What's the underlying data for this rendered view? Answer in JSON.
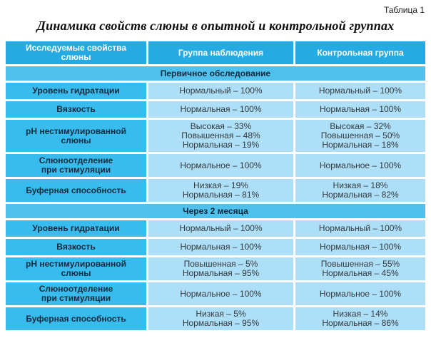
{
  "meta": {
    "table_label": "Таблица 1",
    "title": "Динамика свойств слюны в опытной и контрольной группах"
  },
  "table": {
    "columns": [
      [
        "Исследуемые свойства",
        "слюны"
      ],
      "Группа наблюдения",
      "Контрольная группа"
    ],
    "sections": [
      {
        "title": "Первичное обследование",
        "rows": [
          {
            "property": [
              "Уровень гидратации"
            ],
            "observation": [
              "Нормальный – 100%"
            ],
            "control": [
              "Нормальный – 100%"
            ]
          },
          {
            "property": [
              "Вязкость"
            ],
            "observation": [
              "Нормальная – 100%"
            ],
            "control": [
              "Нормальная – 100%"
            ]
          },
          {
            "property": [
              "pH нестимулированной",
              "слюны"
            ],
            "observation": [
              "Высокая – 33%",
              "Повышенная – 48%",
              "Нормальная – 19%"
            ],
            "control": [
              "Высокая – 32%",
              "Повышенная – 50%",
              "Нормальная – 18%"
            ]
          },
          {
            "property": [
              "Слюноотделение",
              "при стимуляции"
            ],
            "observation": [
              "Нормальное – 100%"
            ],
            "control": [
              "Нормальное – 100%"
            ]
          },
          {
            "property": [
              "Буферная способность"
            ],
            "observation": [
              "Низкая – 19%",
              "Нормальная – 81%"
            ],
            "control": [
              "Низкая – 18%",
              "Нормальная – 82%"
            ]
          }
        ]
      },
      {
        "title": "Через 2 месяца",
        "rows": [
          {
            "property": [
              "Уровень гидратации"
            ],
            "observation": [
              "Нормальный – 100%"
            ],
            "control": [
              "Нормальный – 100%"
            ]
          },
          {
            "property": [
              "Вязкость"
            ],
            "observation": [
              "Нормальная – 100%"
            ],
            "control": [
              "Нормальная – 100%"
            ]
          },
          {
            "property": [
              "pH нестимулированной",
              "слюны"
            ],
            "observation": [
              "Повышенная – 5%",
              "Нормальная – 95%"
            ],
            "control": [
              "Повышенная – 55%",
              "Нормальная – 45%"
            ]
          },
          {
            "property": [
              "Слюноотделение",
              "при стимуляции"
            ],
            "observation": [
              "Нормальное – 100%"
            ],
            "control": [
              "Нормальное – 100%"
            ]
          },
          {
            "property": [
              "Буферная способность"
            ],
            "observation": [
              "Низкая – 5%",
              "Нормальная – 95%"
            ],
            "control": [
              "Низкая – 14%",
              "Нормальная – 86%"
            ]
          }
        ]
      }
    ]
  },
  "colors": {
    "header_bg": "#25abe3",
    "property_col_bg": "#38bcee",
    "section_bg": "#50c1ec",
    "data_cell_bg": "#ade0f8",
    "header_text": "#ffffff",
    "dark_text": "#10293c",
    "value_text": "#35393d"
  }
}
